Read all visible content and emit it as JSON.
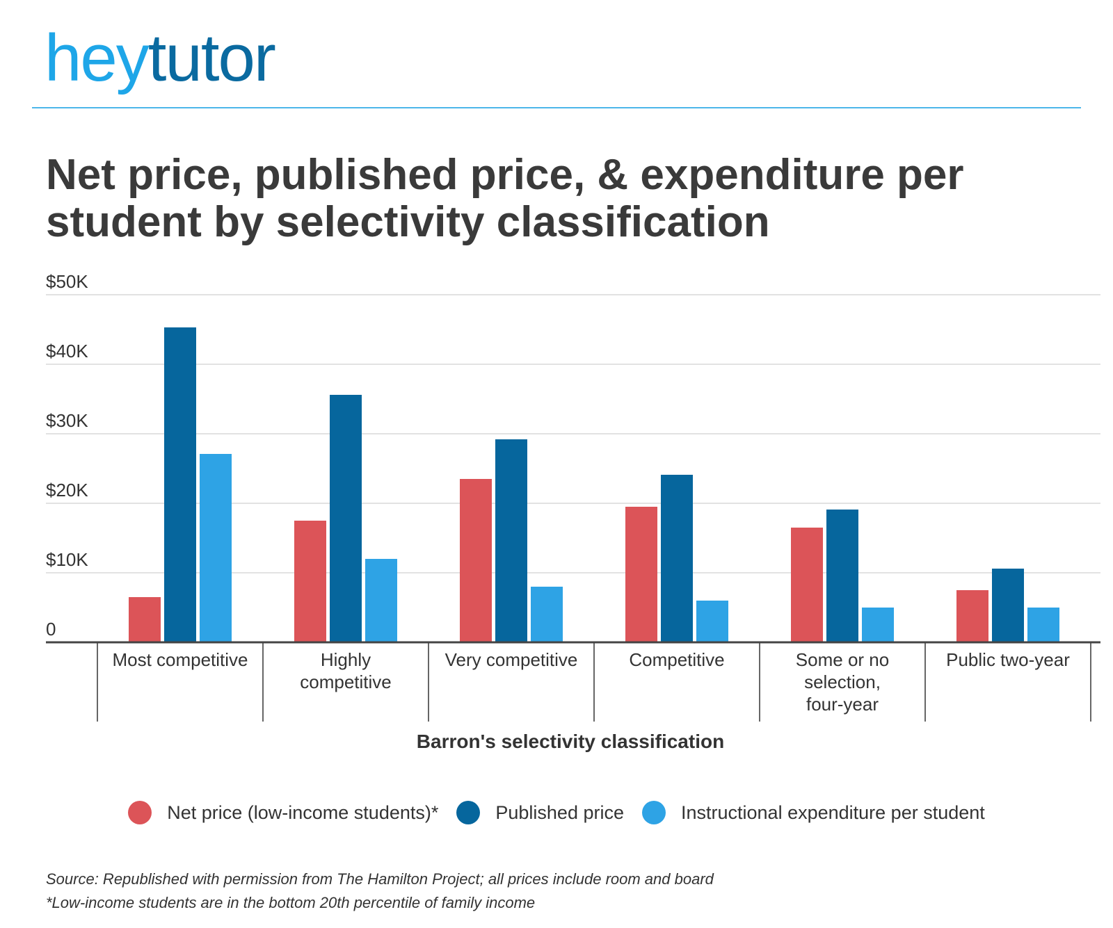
{
  "logo": {
    "part1": "hey",
    "part2": "tutor"
  },
  "chart_data": {
    "type": "bar",
    "title": "Net price, published price, & expenditure per student by selectivity classification",
    "xlabel": "Barron's selectivity classification",
    "ylabel": "",
    "ylim": [
      0,
      50000
    ],
    "yticks": [
      {
        "value": 0,
        "label": "0"
      },
      {
        "value": 10000,
        "label": "$10K"
      },
      {
        "value": 20000,
        "label": "$20K"
      },
      {
        "value": 30000,
        "label": "$30K"
      },
      {
        "value": 40000,
        "label": "$40K"
      },
      {
        "value": 50000,
        "label": "$50K"
      }
    ],
    "grid": true,
    "legend_position": "bottom",
    "categories": [
      [
        "Most competitive"
      ],
      [
        "Highly",
        "competitive"
      ],
      [
        "Very competitive"
      ],
      [
        "Competitive"
      ],
      [
        "Some or no",
        "selection,",
        "four-year"
      ],
      [
        "Public two-year"
      ]
    ],
    "series": [
      {
        "name": "Net price (low-income students)*",
        "color": "#dc5458",
        "values": [
          6500,
          17500,
          23500,
          19500,
          16500,
          7500
        ]
      },
      {
        "name": "Published price",
        "color": "#06669d",
        "values": [
          45300,
          35600,
          29200,
          24100,
          19100,
          10600
        ]
      },
      {
        "name": "Instructional expenditure per student",
        "color": "#2ea3e5",
        "values": [
          27100,
          12000,
          8000,
          6000,
          5000,
          5000
        ]
      }
    ]
  },
  "source_lines": [
    "Source: Republished with permission from The Hamilton Project; all prices include room and board",
    "*Low-income students are in the bottom 20th percentile of family income"
  ]
}
